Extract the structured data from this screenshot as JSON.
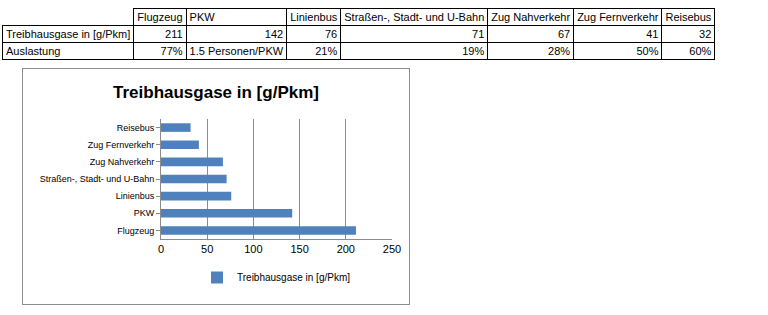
{
  "table": {
    "columns": [
      "Flugzeug",
      "PKW",
      "Linienbus",
      "Straßen-, Stadt- und U-Bahn",
      "Zug Nahverkehr",
      "Zug Fernverkehr",
      "Reisebus"
    ],
    "rows": [
      {
        "label": "Treibhausgase in [g/Pkm]",
        "cells": [
          211,
          142,
          76,
          71,
          67,
          41,
          32
        ]
      },
      {
        "label": "Auslastung",
        "cells": [
          "77%",
          "1.5 Personen/PKW",
          "21%",
          "19%",
          "28%",
          "50%",
          "60%"
        ]
      }
    ]
  },
  "chart_data": {
    "type": "bar",
    "orientation": "horizontal",
    "title": "Treibhausgase in [g/Pkm]",
    "categories": [
      "Flugzeug",
      "PKW",
      "Linienbus",
      "Straßen-, Stadt- und U-Bahn",
      "Zug Nahverkehr",
      "Zug Fernverkehr",
      "Reisebus"
    ],
    "series": [
      {
        "name": "Treibhausgase in [g/Pkm]",
        "color": "#4f81bd",
        "values": [
          211,
          142,
          76,
          71,
          67,
          41,
          32
        ]
      }
    ],
    "xlim": [
      0,
      250
    ],
    "xticks": [
      0,
      50,
      100,
      150,
      200,
      250
    ],
    "grid": true,
    "legend": "bottom"
  }
}
